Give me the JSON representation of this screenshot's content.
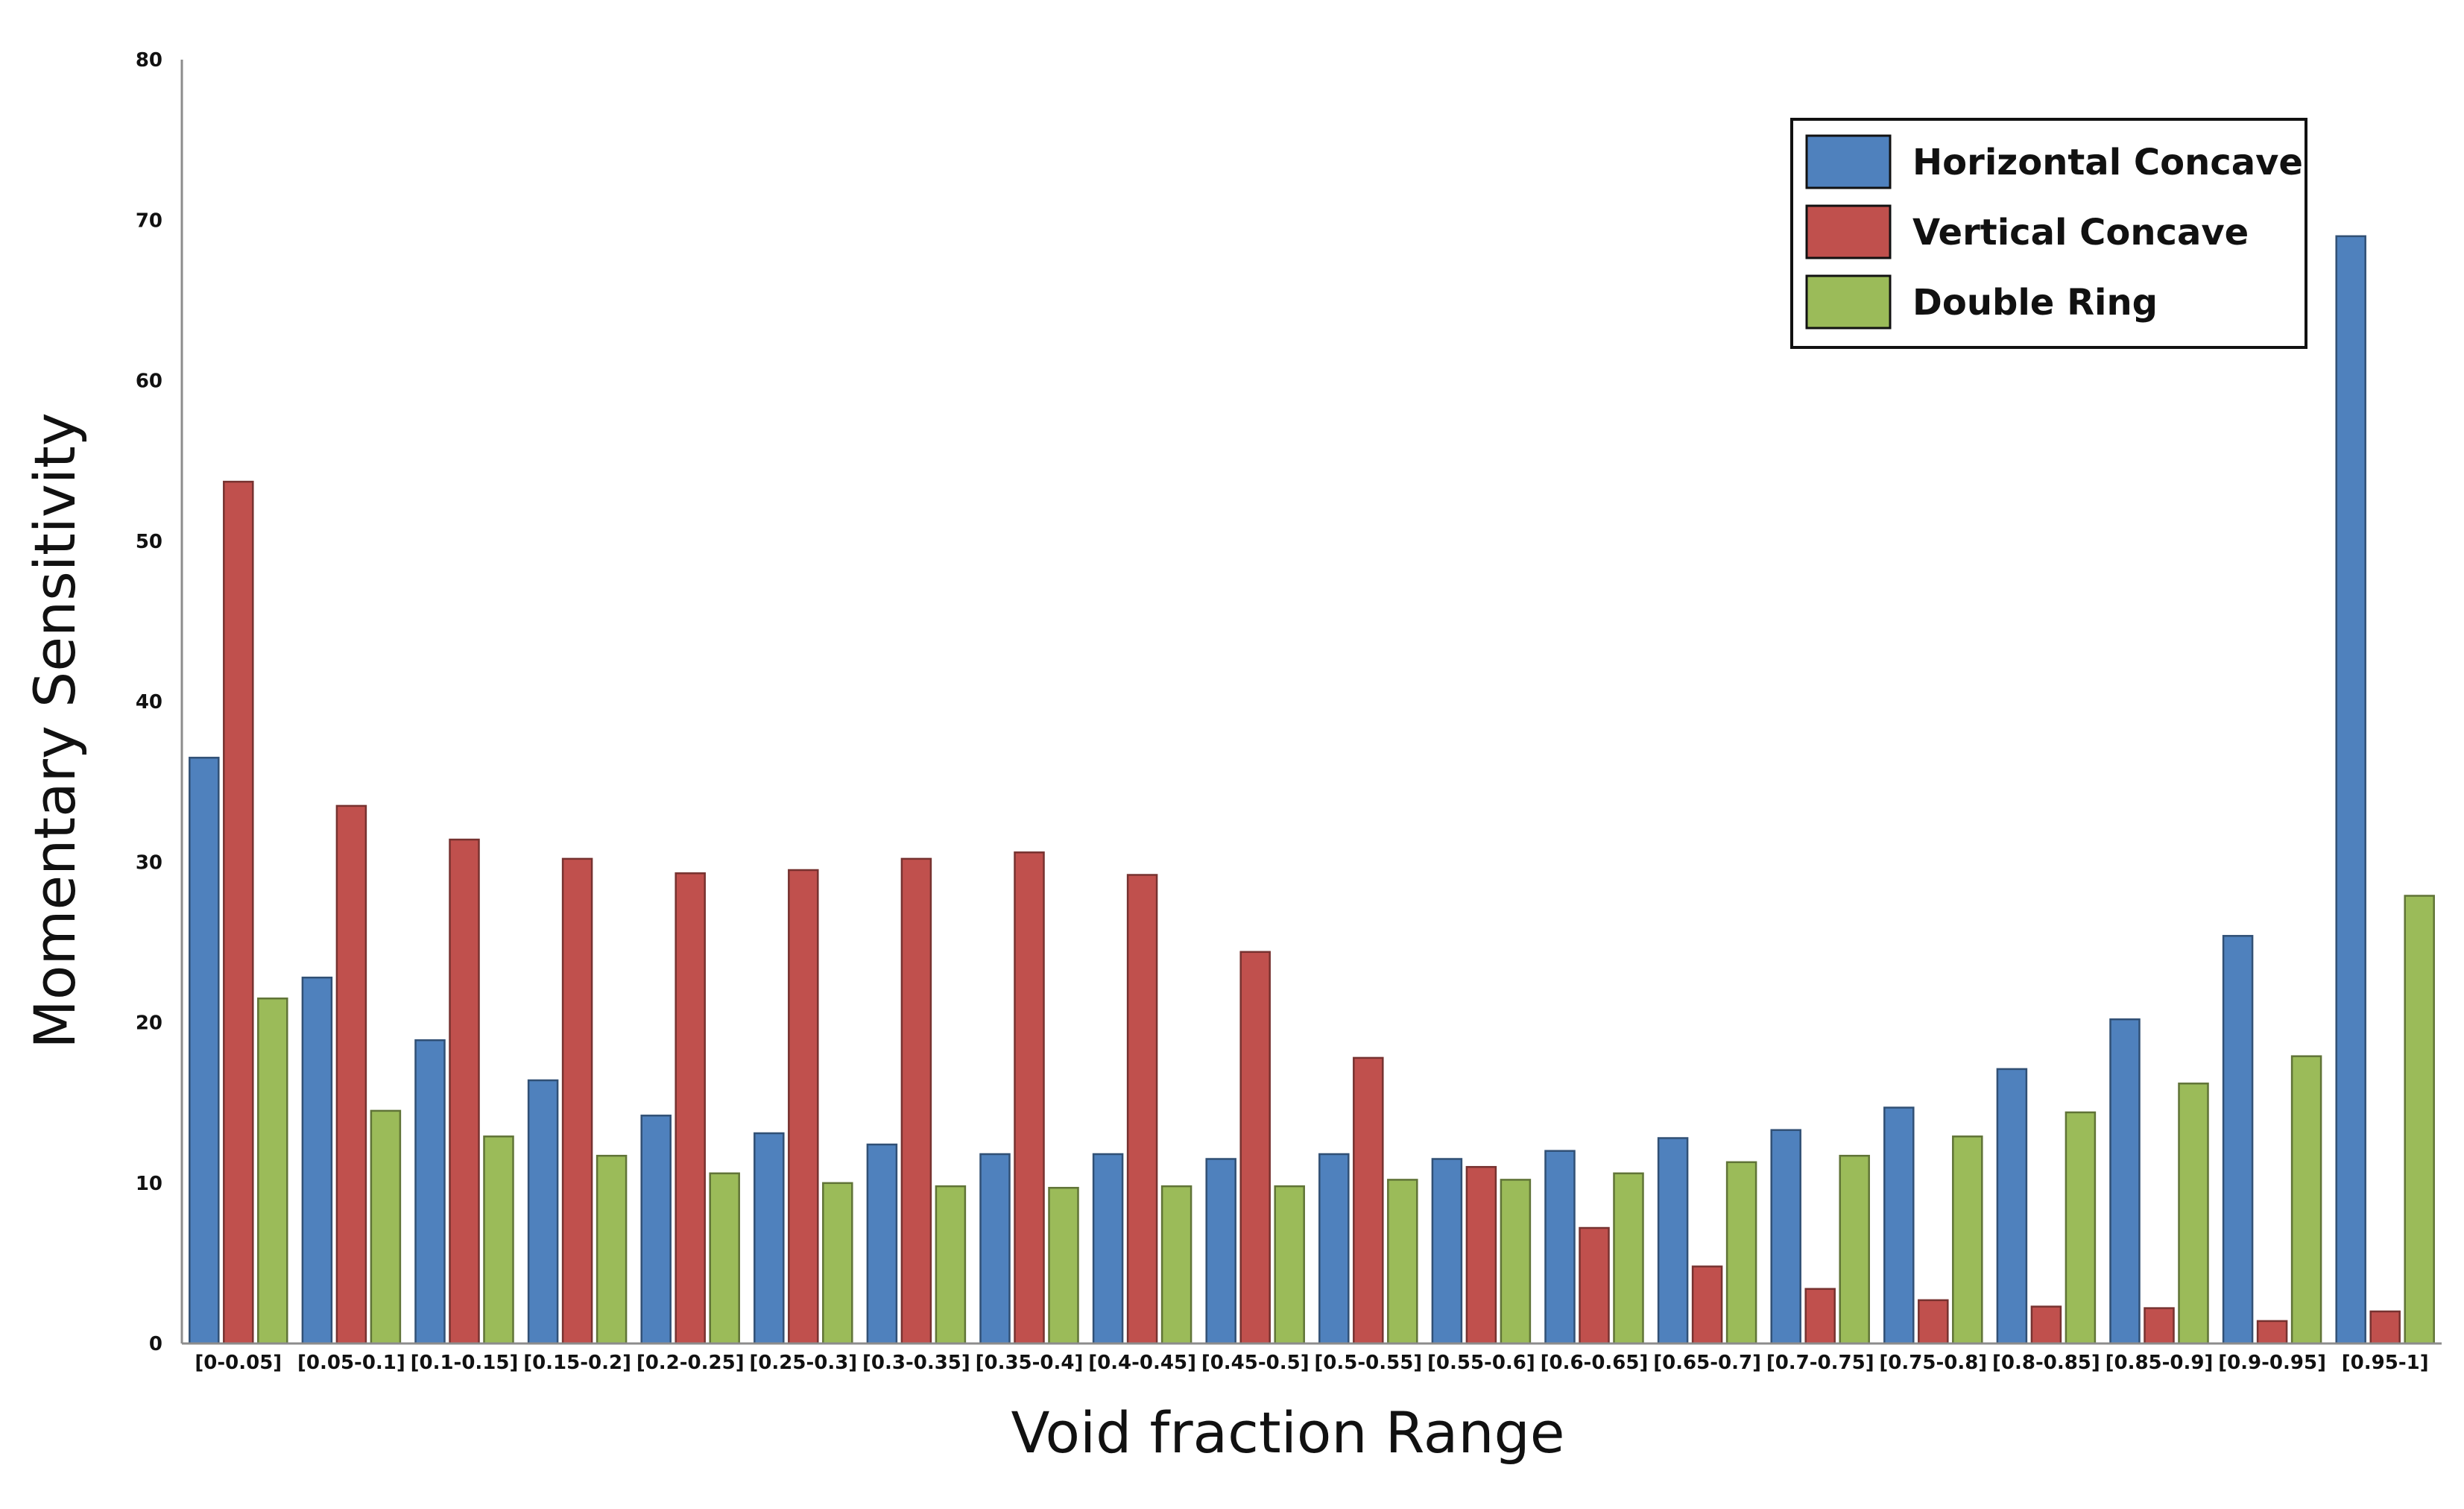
{
  "chart_data": {
    "type": "bar",
    "title": "",
    "xlabel": "Void fraction Range",
    "ylabel": "Momentary Sensitivity",
    "ylim": [
      0,
      80
    ],
    "yticks": [
      0,
      10,
      20,
      30,
      40,
      50,
      60,
      70,
      80
    ],
    "grid": false,
    "legend_position": "top-right",
    "categories": [
      "[0-0.05]",
      "[0.05-0.1]",
      "[0.1-0.15]",
      "[0.15-0.2]",
      "[0.2-0.25]",
      "[0.25-0.3]",
      "[0.3-0.35]",
      "[0.35-0.4]",
      "[0.4-0.45]",
      "[0.45-0.5]",
      "[0.5-0.55]",
      "[0.55-0.6]",
      "[0.6-0.65]",
      "[0.65-0.7]",
      "[0.7-0.75]",
      "[0.75-0.8]",
      "[0.8-0.85]",
      "[0.85-0.9]",
      "[0.9-0.95]",
      "[0.95-1]"
    ],
    "series": [
      {
        "name": "Horizontal Concave",
        "color": "#4f81bd",
        "values": [
          36.5,
          22.8,
          18.9,
          16.4,
          14.2,
          13.1,
          12.4,
          11.8,
          11.8,
          11.5,
          11.8,
          11.5,
          12.0,
          12.8,
          13.3,
          14.7,
          17.1,
          20.2,
          25.4,
          69.0
        ]
      },
      {
        "name": "Vertical Concave",
        "color": "#c0504d",
        "values": [
          53.7,
          33.5,
          31.4,
          30.2,
          29.3,
          29.5,
          30.2,
          30.6,
          29.2,
          24.4,
          17.8,
          11.0,
          7.2,
          4.8,
          3.4,
          2.7,
          2.3,
          2.2,
          1.4,
          2.0
        ]
      },
      {
        "name": "Double Ring",
        "color": "#9bbb59",
        "values": [
          21.5,
          14.5,
          12.9,
          11.7,
          10.6,
          10.0,
          9.8,
          9.7,
          9.8,
          9.8,
          10.2,
          10.2,
          10.6,
          11.3,
          11.7,
          12.9,
          14.4,
          16.2,
          17.9,
          27.9
        ]
      }
    ]
  }
}
